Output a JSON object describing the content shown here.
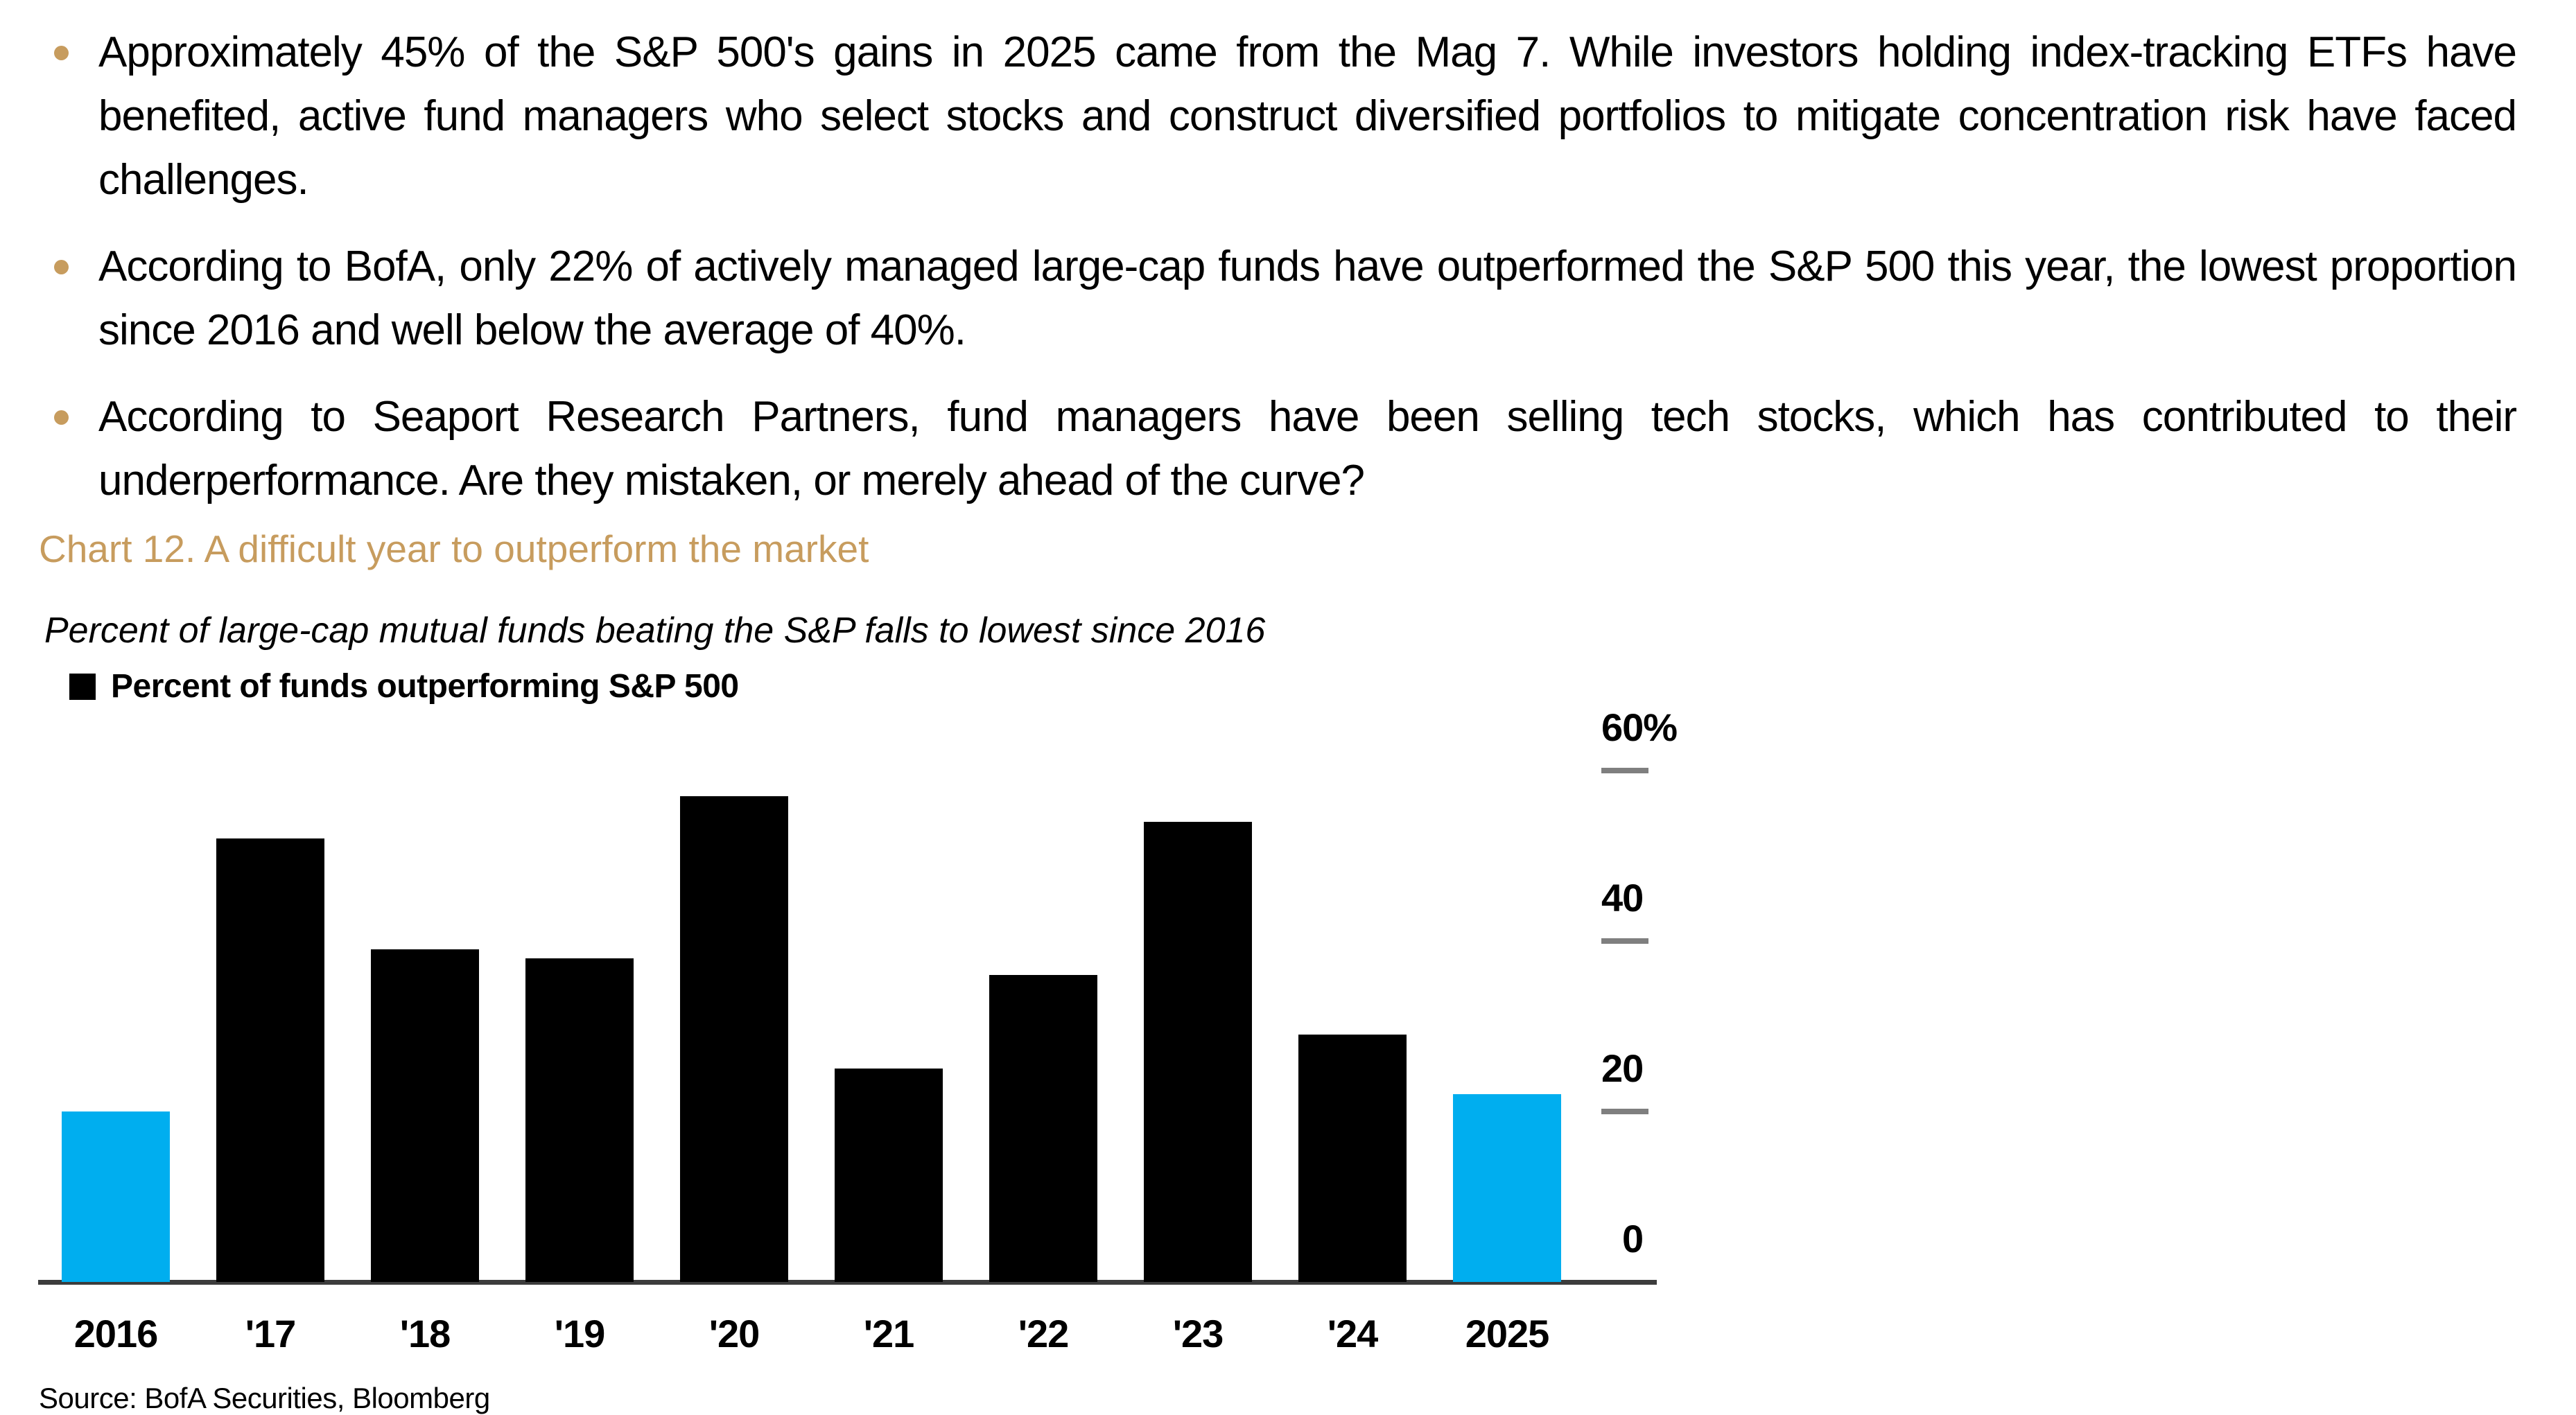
{
  "bullets": {
    "bullet_color": "#C79C5E",
    "items": [
      {
        "text": "Approximately 45% of the S&P 500's gains in 2025 came from the Mag 7. While investors holding index-tracking ETFs have benefited, active fund managers who select stocks and construct diversified portfolios to mitigate concentration risk have faced challenges."
      },
      {
        "text": "According to BofA, only 22% of actively managed large-cap funds have outperformed the S&P 500 this year, the lowest proportion since 2016 and well below the average of 40%."
      },
      {
        "text": "According to Seaport Research Partners, fund managers have been selling tech stocks, which has contributed to their underperformance. Are they mistaken, or merely ahead of the curve?"
      }
    ]
  },
  "chart": {
    "title": "Chart 12. A difficult year to outperform the market",
    "title_color": "#C79C5E",
    "subtitle": "Percent of large-cap mutual funds beating the S&P falls to lowest since 2016",
    "legend_label": "Percent of funds outperforming S&P 500",
    "source": "Source: BofA Securities, Bloomberg"
  },
  "chart_data": {
    "type": "bar",
    "title": "Chart 12. A difficult year to outperform the market",
    "subtitle": "Percent of large-cap mutual funds beating the S&P falls to lowest since 2016",
    "legend": [
      "Percent of funds outperforming S&P 500"
    ],
    "legend_position": "top-left",
    "categories": [
      "2016",
      "'17",
      "'18",
      "'19",
      "'20",
      "'21",
      "'22",
      "'23",
      "'24",
      "2025"
    ],
    "values": [
      20,
      52,
      39,
      38,
      57,
      25,
      36,
      54,
      29,
      22
    ],
    "xlabel": "",
    "ylabel": "",
    "ylim": [
      0,
      60
    ],
    "yticks": [
      0,
      20,
      40,
      60
    ],
    "ytick_labels": [
      "0",
      "20",
      "40",
      "60%"
    ],
    "grid": false,
    "bar_color_default": "#000000",
    "bar_color_highlight": "#00AEEF",
    "highlight_categories": [
      "2016",
      "2025"
    ],
    "tick_color": "#7F7F7F",
    "axis_color": "#3C3C3C",
    "source": "Source: BofA Securities, Bloomberg"
  }
}
